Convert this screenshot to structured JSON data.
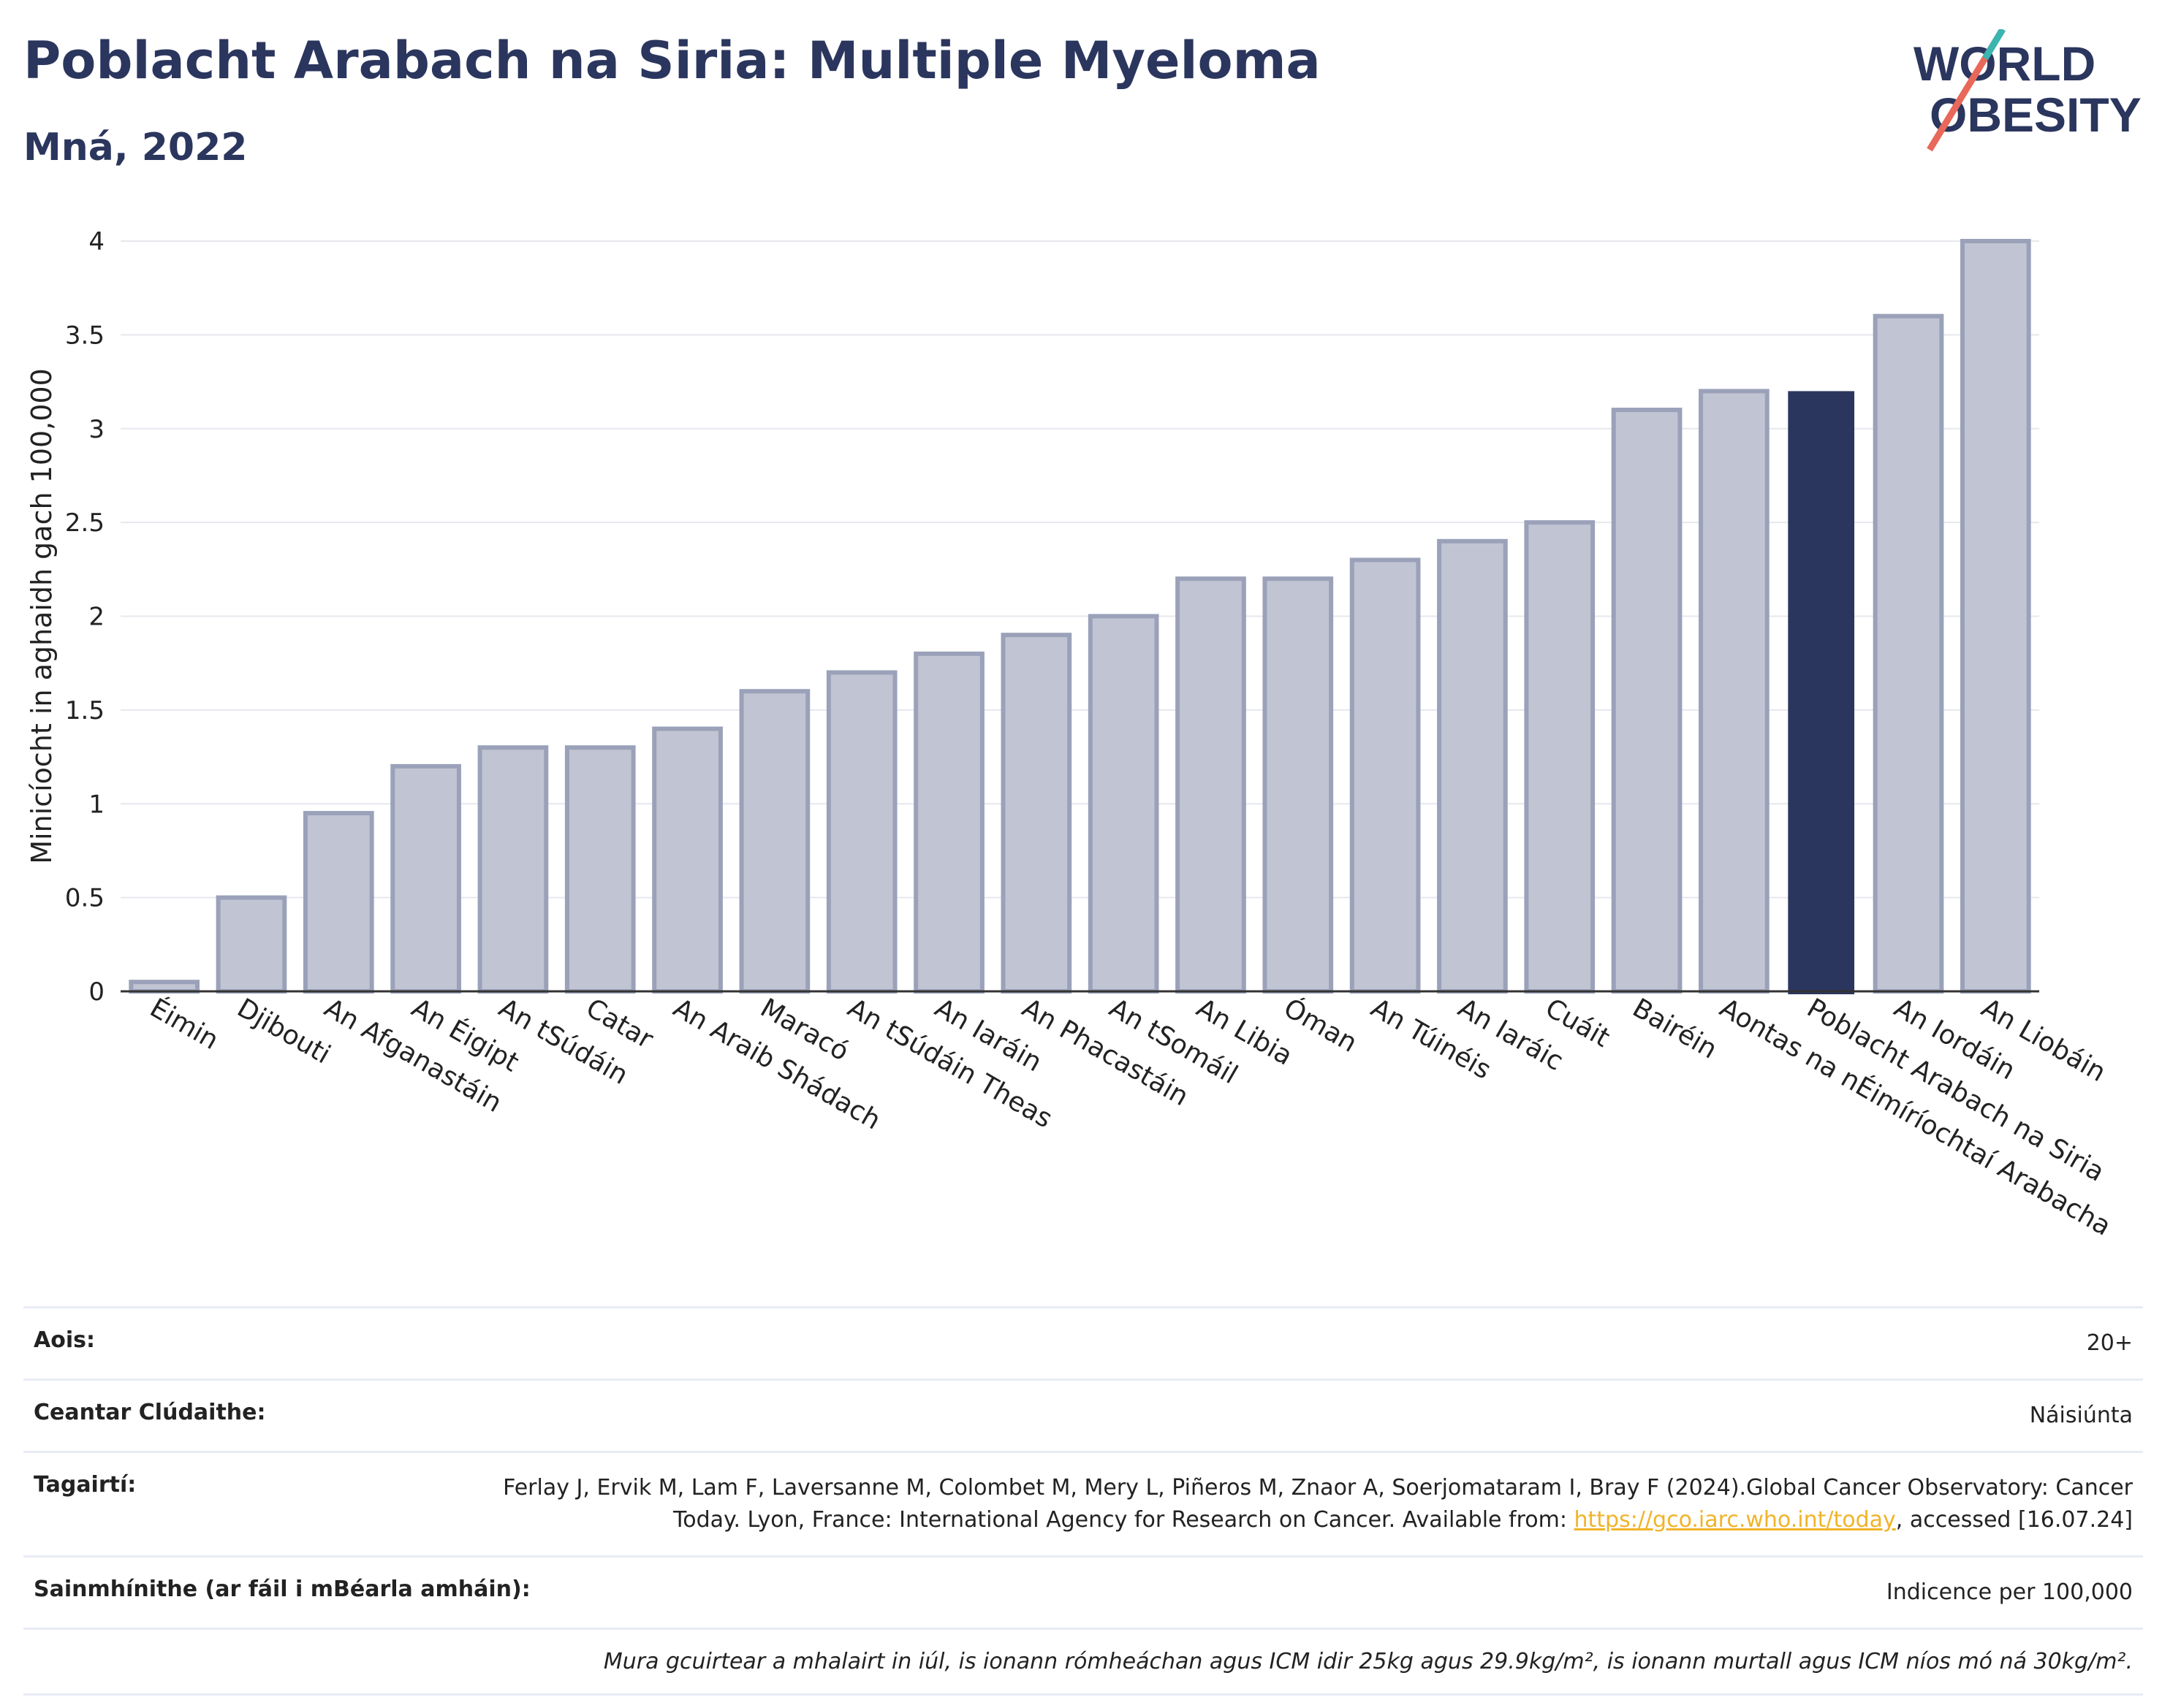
{
  "header": {
    "title": "Poblacht Arabach na Siria: Multiple Myeloma",
    "subtitle": "Mná, 2022"
  },
  "logo": {
    "line1": "WORLD",
    "line2": "OBESITY",
    "accent": "#e8685a",
    "accent2": "#3ab5b0"
  },
  "chart_data": {
    "type": "bar",
    "title": "Poblacht Arabach na Siria: Multiple Myeloma",
    "subtitle": "Mná, 2022",
    "xlabel": "",
    "ylabel": "Minicíocht in aghaidh gach 100,000",
    "ylim": [
      0,
      4
    ],
    "yticks": [
      0,
      0.5,
      1,
      1.5,
      2,
      2.5,
      3,
      3.5,
      4
    ],
    "ytick_labels": [
      "0",
      "0.5",
      "1",
      "1.5",
      "2",
      "2.5",
      "3",
      "3.5",
      "4"
    ],
    "grid": true,
    "categories": [
      "Éimin",
      "Djibouti",
      "An Afganastáin",
      "An Éigipt",
      "An tSúdáin",
      "Catar",
      "An Araib Shádach",
      "Maracó",
      "An tSúdáin Theas",
      "An Iaráin",
      "An Phacastáin",
      "An tSomáil",
      "An Libia",
      "Óman",
      "An Túinéis",
      "An Iaráic",
      "Cuáit",
      "Bairéin",
      "Aontas na nÉimíríochtaí Arabacha",
      "Poblacht Arabach na Siria",
      "An Iordáin",
      "An Liobáin"
    ],
    "values": [
      0.05,
      0.5,
      0.95,
      1.2,
      1.3,
      1.3,
      1.4,
      1.6,
      1.7,
      1.8,
      1.9,
      2.0,
      2.2,
      2.2,
      2.3,
      2.4,
      2.5,
      3.1,
      3.2,
      3.2,
      3.6,
      4.0
    ],
    "highlight": "Poblacht Arabach na Siria",
    "colors": {
      "bar": "#c1c4d2",
      "bar_edge": "#9aa1b9",
      "highlight": "#2b365e",
      "grid": "#e6e8ee",
      "axis": "#333333"
    }
  },
  "info": {
    "age_label": "Aois:",
    "age_value": "20+",
    "area_label": "Ceantar Clúdaithe:",
    "area_value": "Náisiúnta",
    "refs_label": "Tagairtí:",
    "refs_text": "Ferlay J, Ervik M, Lam F, Laversanne M, Colombet M, Mery L, Piñeros M, Znaor A, Soerjomataram I, Bray F (2024).Global Cancer Observatory: Cancer Today. Lyon, France: International Agency for Research on Cancer. Available from: ",
    "refs_link": "https://gco.iarc.who.int/today",
    "refs_tail": ", accessed [16.07.24]",
    "defs_label": "Sainmhínithe (ar fáil i mBéarla amháin):",
    "defs_value": "Indicence per 100,000",
    "note": "Mura gcuirtear a mhalairt in iúl, is ionann rómheáchan agus ICM idir 25kg agus 29.9kg/m², is ionann murtall agus ICM níos mó ná 30kg/m²."
  }
}
